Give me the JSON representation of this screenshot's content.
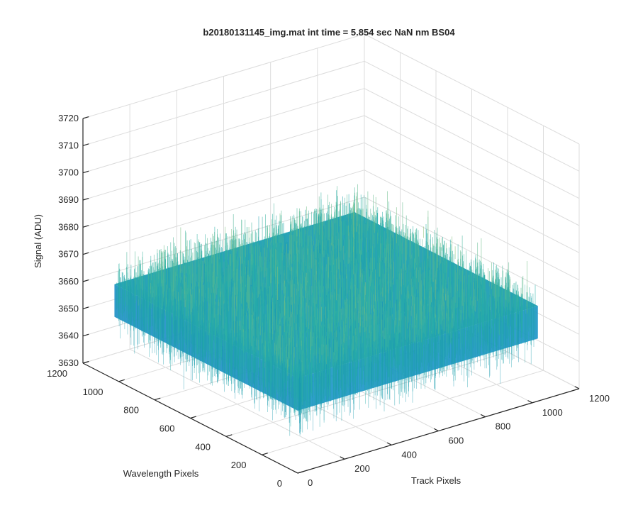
{
  "chart_data": {
    "type": "surface",
    "title": "b20180131145_img.mat int time = 5.854 sec  NaN nm BS04",
    "xlabel": "Track Pixels",
    "ylabel": "Wavelength Pixels",
    "zlabel": "Signal (ADU)",
    "xlim": [
      0,
      1200
    ],
    "ylim": [
      0,
      1200
    ],
    "zlim": [
      3630,
      3720
    ],
    "x_ticks": [
      "0",
      "200",
      "400",
      "600",
      "800",
      "1000",
      "1200"
    ],
    "y_ticks": [
      "0",
      "200",
      "400",
      "600",
      "800",
      "1000",
      "1200"
    ],
    "z_ticks": [
      "3630",
      "3640",
      "3650",
      "3660",
      "3670",
      "3680",
      "3690",
      "3700",
      "3710",
      "3720"
    ],
    "surface": {
      "x_range": [
        0,
        1024
      ],
      "y_range": [
        0,
        1024
      ],
      "z_mean": 3665,
      "z_range": [
        3636,
        3708
      ],
      "colormap": "parula"
    },
    "grid": true,
    "view": "3d"
  },
  "colors": {
    "axis": "#262626",
    "grid": "#dcdcdc",
    "surface_low": "#0072bd",
    "surface_mid": "#2ab0a8",
    "surface_high": "#e6d24a"
  }
}
